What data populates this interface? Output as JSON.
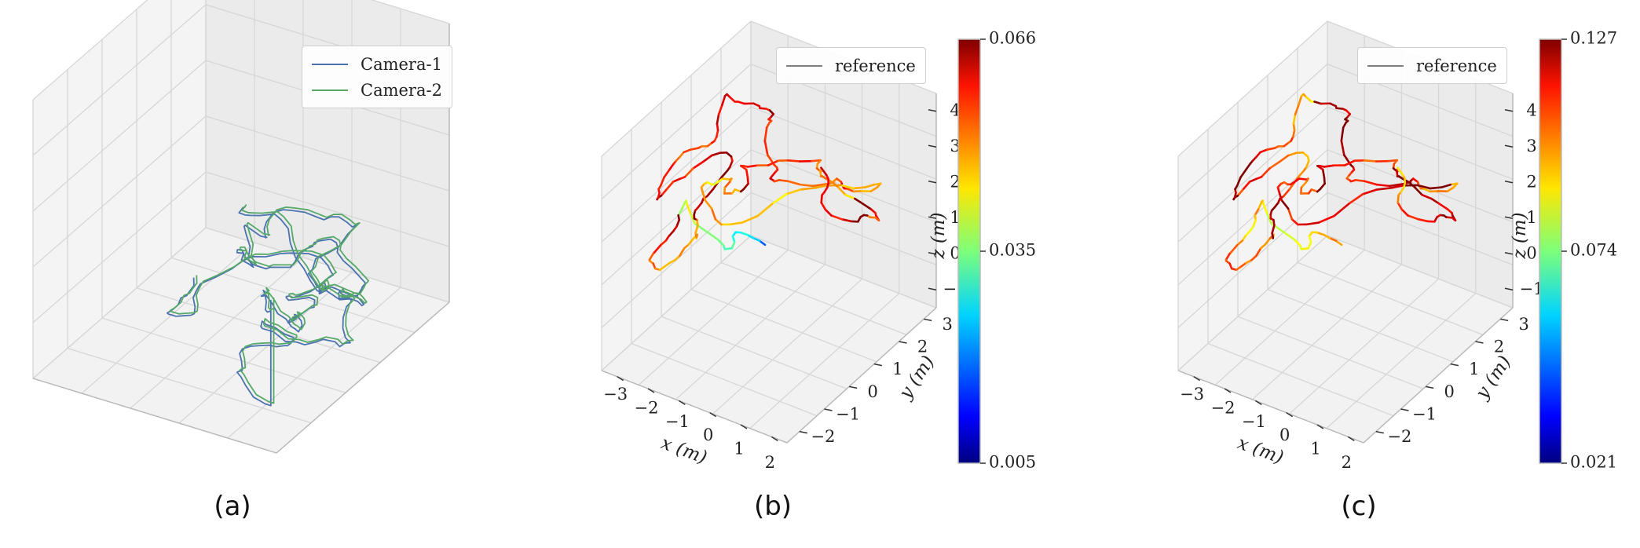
{
  "panels": [
    {
      "id": "a",
      "label": "(a)"
    },
    {
      "id": "b",
      "label": "(b)"
    },
    {
      "id": "c",
      "label": "(c)"
    }
  ],
  "chart_data": [
    {
      "type": "line",
      "panel": "(a)",
      "dims": 3,
      "axis_ticks": "none",
      "grid": true,
      "legend_placement": "top-right",
      "series": [
        {
          "name": "Camera-1",
          "color": "#4c72b0"
        },
        {
          "name": "Camera-2",
          "color": "#55a868"
        }
      ]
    },
    {
      "type": "line",
      "panel": "(b)",
      "dims": 3,
      "xlabel": "x (m)",
      "ylabel": "y (m)",
      "zlabel": "z (m)",
      "xticks": [
        "−3",
        "−2",
        "−1",
        "0",
        "1",
        "2"
      ],
      "yticks": [
        "−2",
        "−1",
        "0",
        "1",
        "2",
        "3"
      ],
      "zticks": [
        "−1",
        "0",
        "1",
        "2",
        "3",
        "4"
      ],
      "xlim": [
        -3,
        2.5
      ],
      "ylim": [
        -2,
        3.5
      ],
      "zlim": [
        -1,
        4.5
      ],
      "grid": true,
      "legend_placement": "top-right",
      "series": [
        {
          "name": "reference",
          "color": "#808080"
        }
      ],
      "colormap": "jet",
      "colorbar": {
        "min": 0.005,
        "max": 0.066,
        "ticks": [
          "0.005",
          "0.035",
          "0.066"
        ]
      }
    },
    {
      "type": "line",
      "panel": "(c)",
      "dims": 3,
      "xlabel": "x (m)",
      "ylabel": "y (m)",
      "zlabel": "z (m)",
      "xticks": [
        "−3",
        "−2",
        "−1",
        "0",
        "1",
        "2"
      ],
      "yticks": [
        "−2",
        "−1",
        "0",
        "1",
        "2",
        "3"
      ],
      "zticks": [
        "−1",
        "0",
        "1",
        "2",
        "3",
        "4"
      ],
      "xlim": [
        -3,
        2.5
      ],
      "ylim": [
        -2,
        3.5
      ],
      "zlim": [
        -1,
        4.5
      ],
      "grid": true,
      "legend_placement": "top-right",
      "series": [
        {
          "name": "reference",
          "color": "#808080"
        }
      ],
      "colormap": "jet",
      "colorbar": {
        "min": 0.021,
        "max": 0.127,
        "ticks": [
          "0.021",
          "0.074",
          "0.127"
        ]
      }
    }
  ]
}
